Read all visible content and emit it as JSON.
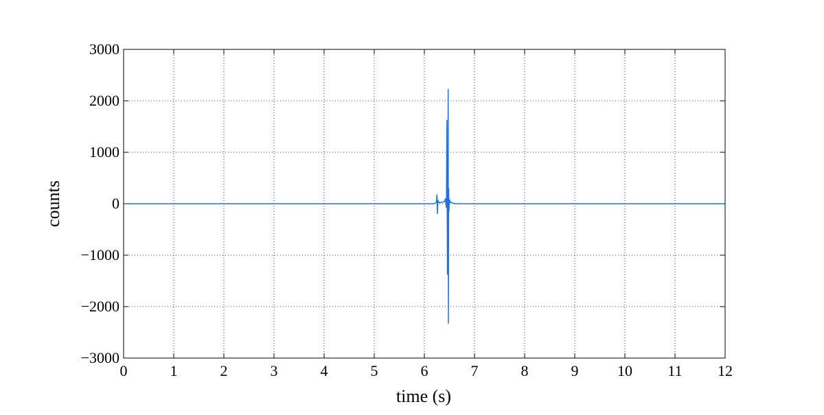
{
  "chart_data": {
    "type": "line",
    "x_label": "time (s)",
    "y_label": "counts",
    "x": [
      0,
      6.2,
      6.24,
      6.25,
      6.26,
      6.27,
      6.3,
      6.4,
      6.42,
      6.44,
      6.45,
      6.46,
      6.465,
      6.47,
      6.475,
      6.48,
      6.485,
      6.49,
      6.5,
      6.52,
      6.6,
      12
    ],
    "series": [
      {
        "color": "#1f6fe5",
        "values": [
          0,
          0,
          30,
          180,
          -200,
          60,
          20,
          40,
          100,
          -80,
          1630,
          -1380,
          580,
          -600,
          2230,
          -2330,
          300,
          -150,
          80,
          30,
          0,
          0
        ]
      }
    ],
    "xlim": [
      0,
      12
    ],
    "xticks": [
      0,
      1,
      2,
      3,
      4,
      5,
      6,
      7,
      8,
      9,
      10,
      11,
      12
    ],
    "ylim": [
      -3000,
      3000
    ],
    "yticks": [
      {
        "value": -3000,
        "label": "−3000"
      },
      {
        "value": -2000,
        "label": "−2000"
      },
      {
        "value": -1000,
        "label": "−1000"
      },
      0,
      1000,
      2000,
      3000
    ],
    "grid": true
  }
}
